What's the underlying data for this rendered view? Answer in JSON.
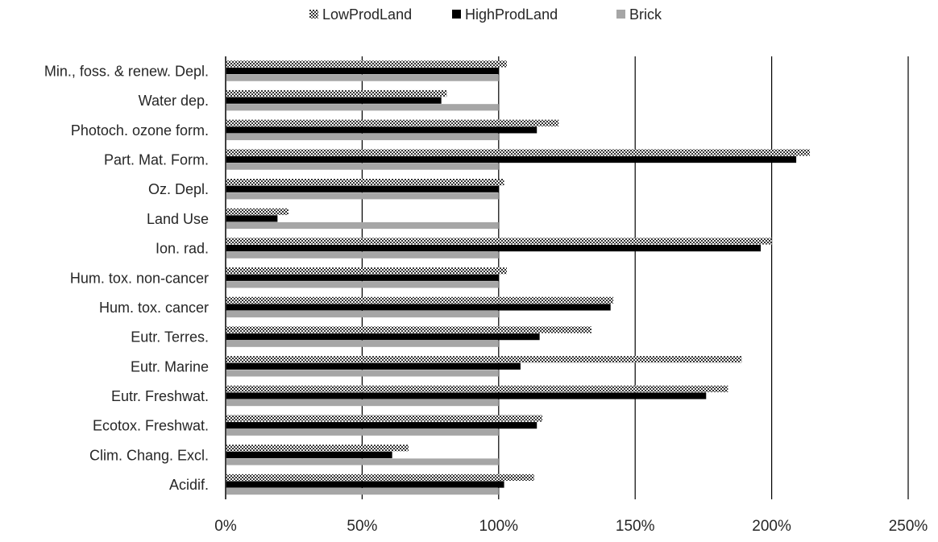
{
  "chart_data": {
    "type": "bar",
    "orientation": "horizontal",
    "categories": [
      "Min., foss. & renew. Depl.",
      "Water dep.",
      "Photoch. ozone form.",
      "Part. Mat. Form.",
      "Oz. Depl.",
      "Land Use",
      "Ion. rad.",
      "Hum. tox. non-cancer",
      "Hum. tox. cancer",
      "Eutr. Terres.",
      "Eutr. Marine",
      "Eutr. Freshwat.",
      "Ecotox. Freshwat.",
      "Clim. Chang. Excl.",
      "Acidif."
    ],
    "series": [
      {
        "name": "LowProdLand",
        "pattern": "checkered",
        "color": "#555555",
        "values": [
          103,
          81,
          122,
          214,
          102,
          23,
          200,
          103,
          142,
          134,
          189,
          184,
          116,
          67,
          113
        ]
      },
      {
        "name": "HighProdLand",
        "pattern": "solid",
        "color": "#000000",
        "values": [
          100,
          79,
          114,
          209,
          100,
          19,
          196,
          100,
          141,
          115,
          108,
          176,
          114,
          61,
          102
        ]
      },
      {
        "name": "Brick",
        "pattern": "solid",
        "color": "#a6a6a6",
        "values": [
          100,
          100,
          100,
          100,
          100,
          100,
          100,
          100,
          100,
          100,
          100,
          100,
          100,
          100,
          100
        ]
      }
    ],
    "x_ticks": [
      "0%",
      "50%",
      "100%",
      "150%",
      "200%",
      "250%"
    ],
    "x_tick_values": [
      0,
      50,
      100,
      150,
      200,
      250
    ],
    "xlim": [
      0,
      250
    ],
    "unit": "%",
    "legend_position": "top-center",
    "grid": "vertical major gridlines",
    "title": "",
    "xlabel": "",
    "ylabel": ""
  }
}
